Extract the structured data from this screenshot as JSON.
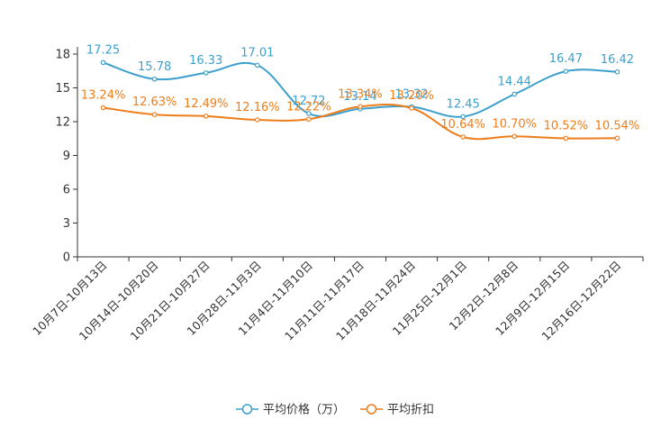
{
  "chart_data": {
    "type": "line",
    "categories": [
      "10月7日-10月13日",
      "10月14日-10月20日",
      "10月21日-10月27日",
      "10月28日-11月3日",
      "11月4日-11月10日",
      "11月11日-11月17日",
      "11月18日-11月24日",
      "11月25日-12月1日",
      "12月2日-12月8日",
      "12月9日-12月15日",
      "12月16日-12月22日"
    ],
    "ylim": [
      0,
      18
    ],
    "yticks": [
      "0",
      "3",
      "6",
      "9",
      "12",
      "15",
      "18"
    ],
    "series": [
      {
        "name": "平均价格（万）",
        "color": "#3d9fcb",
        "values": [
          17.25,
          15.78,
          16.33,
          17.01,
          12.72,
          13.14,
          13.32,
          12.45,
          14.44,
          16.47,
          16.42
        ],
        "labels": [
          "17.25",
          "15.78",
          "16.33",
          "17.01",
          "12.72",
          "13.14",
          "13.32",
          "12.45",
          "14.44",
          "16.47",
          "16.42"
        ]
      },
      {
        "name": "平均折扣",
        "color": "#ee7d1c",
        "values": [
          13.24,
          12.63,
          12.49,
          12.16,
          12.22,
          13.34,
          13.2,
          10.64,
          10.7,
          10.52,
          10.54
        ],
        "labels": [
          "13.24%",
          "12.63%",
          "12.49%",
          "12.16%",
          "12.22%",
          "13.34%",
          "13.20%",
          "10.64%",
          "10.70%",
          "10.52%",
          "10.54%"
        ]
      }
    ],
    "legend": "bottom"
  }
}
